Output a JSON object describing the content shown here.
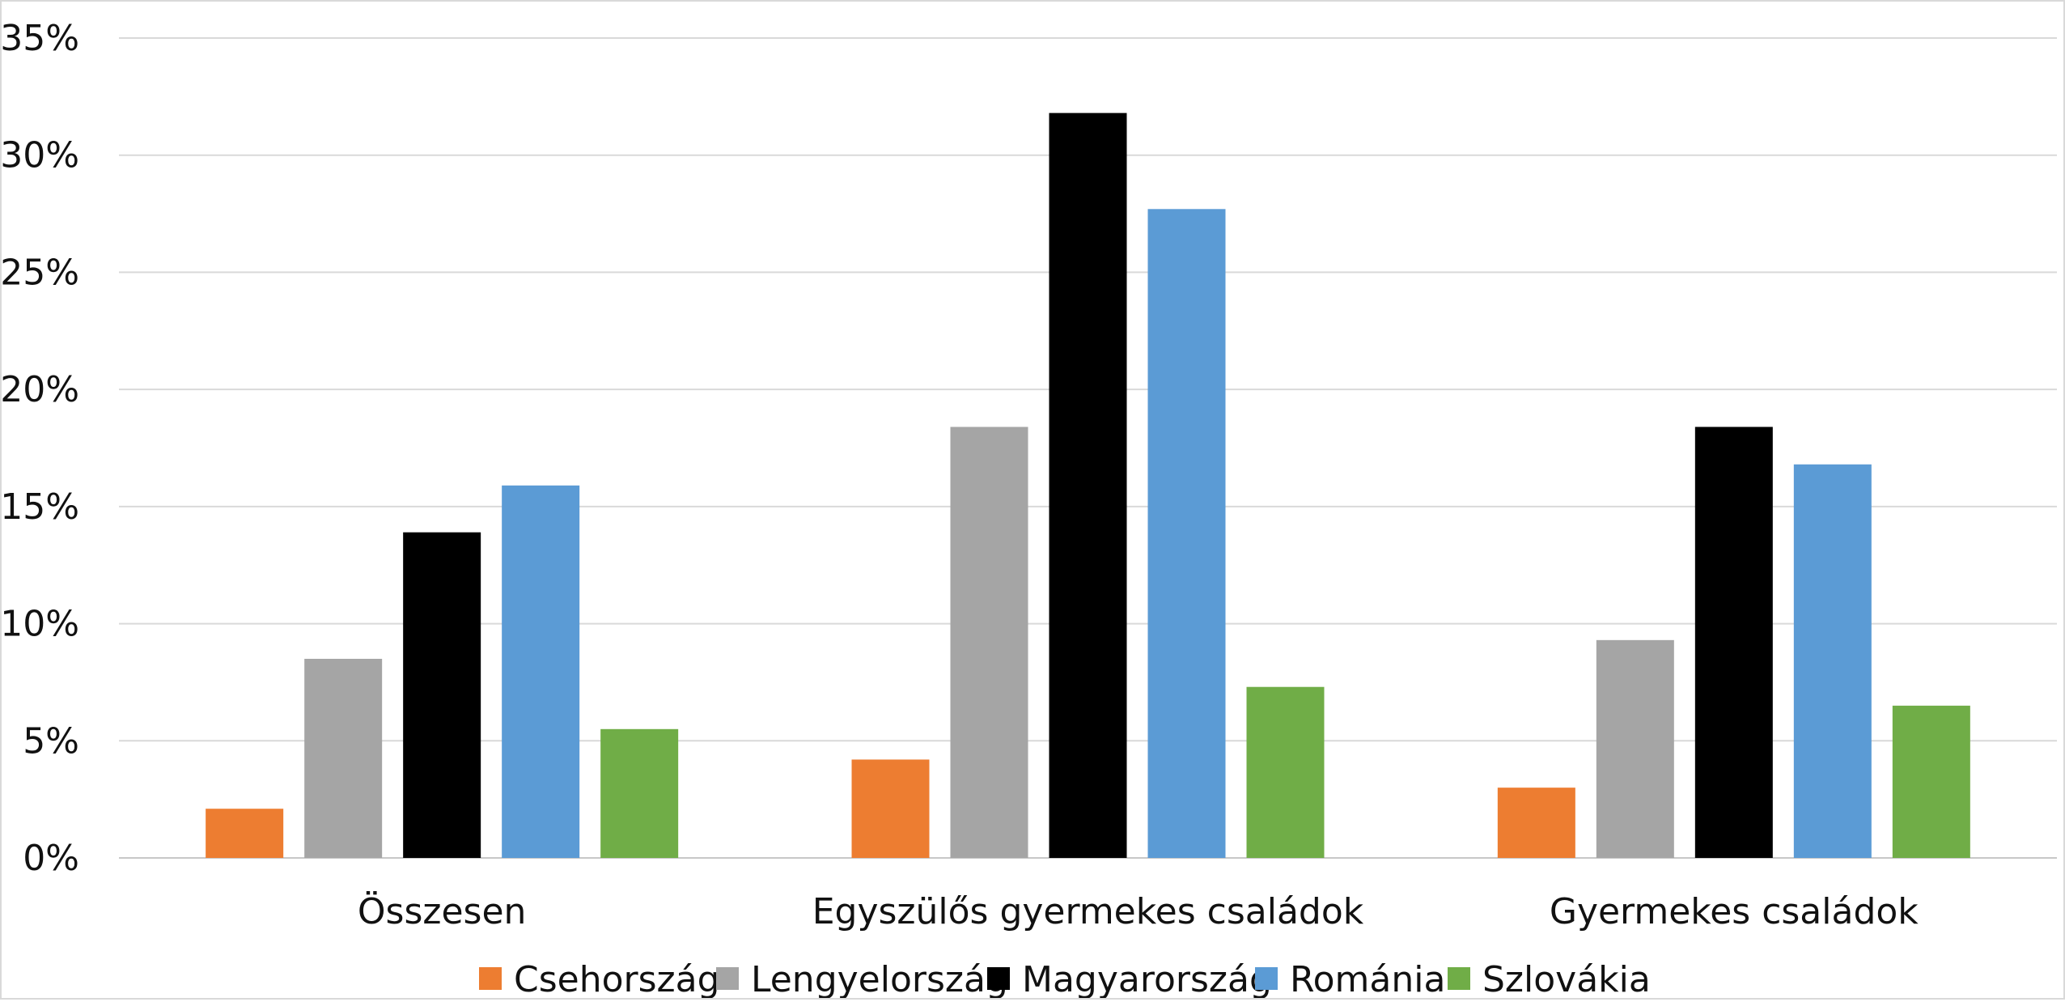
{
  "chart_data": {
    "type": "bar",
    "title": "",
    "xlabel": "",
    "ylabel": "",
    "ylim": [
      0,
      35
    ],
    "y_tick_values": [
      0,
      5,
      10,
      15,
      20,
      25,
      30,
      35
    ],
    "y_tick_labels": [
      "0%",
      "5%",
      "10%",
      "15%",
      "20%",
      "25%",
      "30%",
      "35%"
    ],
    "grid": "horizontal",
    "legend_position": "bottom",
    "categories": [
      "Összesen",
      "Egyszülős gyermekes családok",
      "Gyermekes családok"
    ],
    "series": [
      {
        "name": "Csehország",
        "color": "#ed7d31",
        "values": [
          2.1,
          4.2,
          3.0
        ]
      },
      {
        "name": "Lengyelország",
        "color": "#a5a5a5",
        "values": [
          8.5,
          18.4,
          9.3
        ]
      },
      {
        "name": "Magyarország",
        "color": "#000000",
        "values": [
          13.9,
          31.8,
          18.4
        ]
      },
      {
        "name": "Románia",
        "color": "#5b9bd5",
        "values": [
          15.9,
          27.7,
          16.8
        ]
      },
      {
        "name": "Szlovákia",
        "color": "#70ad47",
        "values": [
          5.5,
          7.3,
          6.5
        ]
      }
    ]
  }
}
